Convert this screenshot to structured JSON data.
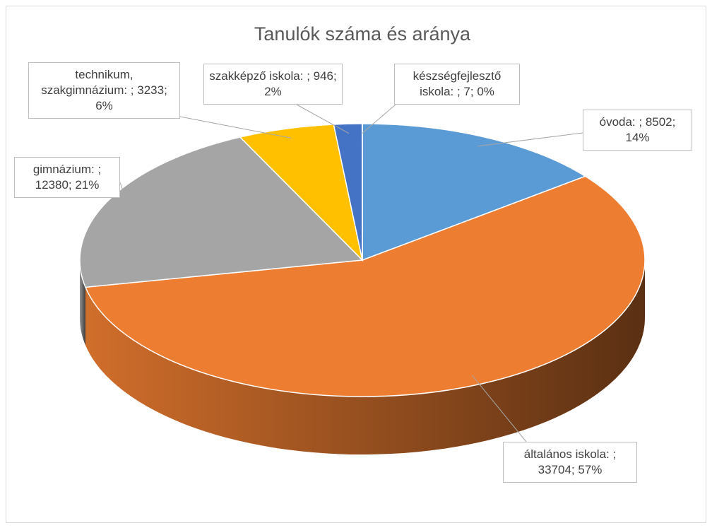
{
  "chart_data": {
    "type": "pie",
    "three_d": true,
    "title": "Tanulók száma és aránya",
    "categories": [
      "óvoda",
      "általános iskola",
      "gimnázium",
      "technikum, szakgimnázium",
      "szakképző iskola",
      "készségfejlesztő iskola"
    ],
    "values": [
      8502,
      33704,
      12380,
      3233,
      946,
      7
    ],
    "value_labels": [
      "óvoda: ; 8502; 14%",
      "általános iskola: ; 33704; 57%",
      "gimnázium: ; 12380; 21%",
      "technikum, szakgimnázium: ; 3233; 6%",
      "szakképző iskola: ; 946; 2%",
      "készségfejlesztő iskola: ; 7; 0%"
    ],
    "colors": [
      "#5b9bd5",
      "#ed7d31",
      "#a5a5a5",
      "#ffc000",
      "#4472c4",
      "#70ad47"
    ]
  }
}
